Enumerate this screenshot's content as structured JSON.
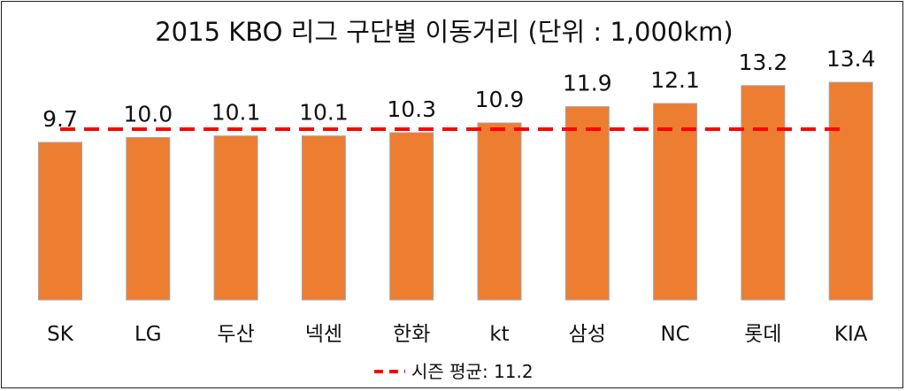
{
  "chart_data": {
    "type": "bar",
    "title": "2015 KBO 리그 구단별 이동거리 (단위 : 1,000km)",
    "categories": [
      "SK",
      "LG",
      "두산",
      "넥센",
      "한화",
      "kt",
      "삼성",
      "NC",
      "롯데",
      "KIA"
    ],
    "values": [
      9.7,
      10.0,
      10.1,
      10.1,
      10.3,
      10.9,
      11.9,
      12.1,
      13.2,
      13.4
    ],
    "value_labels": [
      "9.7",
      "10.0",
      "10.1",
      "10.1",
      "10.3",
      "10.9",
      "11.9",
      "12.1",
      "13.2",
      "13.4"
    ],
    "average": {
      "label": "시즌 평균: 11.2",
      "value": 11.2
    },
    "bar_color": "#ed7d31",
    "bar_edge_color": "#a5a5a5",
    "average_line_color": "#ff0000",
    "legend_position": "bottom-center",
    "grid": false
  }
}
